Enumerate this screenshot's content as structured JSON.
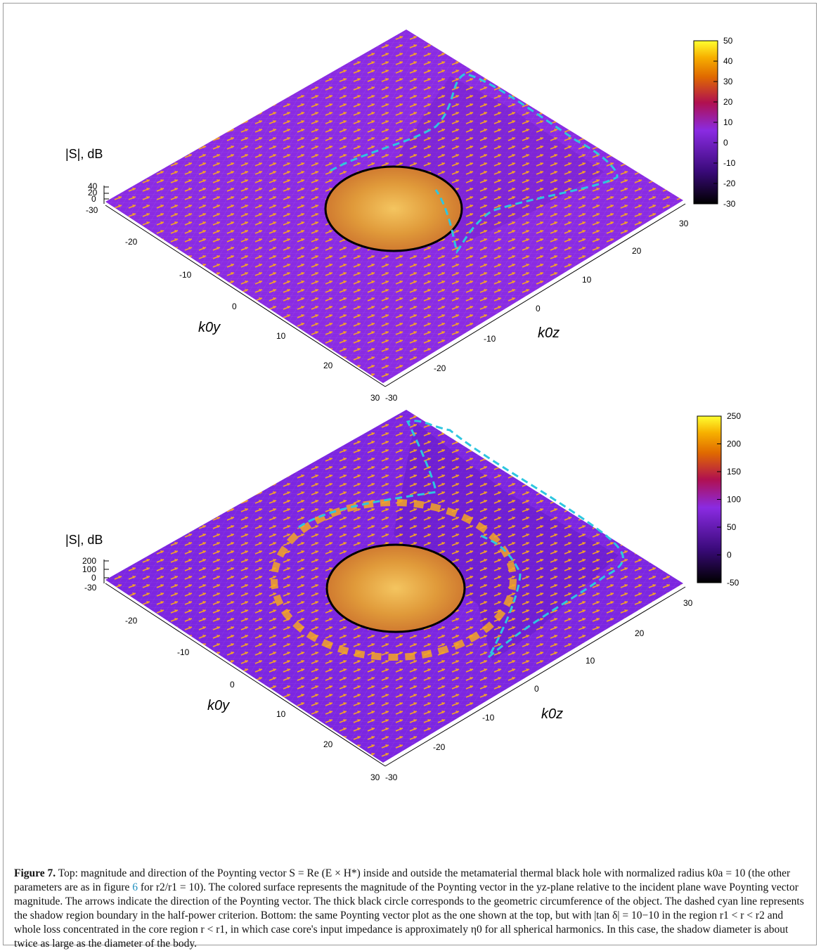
{
  "figure": {
    "panels": [
      {
        "id": "top",
        "zlabel": "|S|, dB",
        "zticks": [
          "40",
          "20",
          "0",
          "-30"
        ],
        "colorbar": {
          "min": -30,
          "max": 50,
          "ticks": [
            "50",
            "40",
            "30",
            "20",
            "10",
            "0",
            "-10",
            "-20",
            "-30"
          ]
        },
        "ylabel": "k0y",
        "zaxis_label": "k0z",
        "y_ticks": [
          "-20",
          "-10",
          "0",
          "10",
          "20",
          "30"
        ],
        "z_ticks": [
          "-30",
          "-20",
          "-10",
          "0",
          "10",
          "20",
          "30"
        ]
      },
      {
        "id": "bottom",
        "zlabel": "|S|, dB",
        "zticks": [
          "200",
          "100",
          "0",
          "-30"
        ],
        "colorbar": {
          "min": -50,
          "max": 250,
          "ticks": [
            "250",
            "200",
            "150",
            "100",
            "50",
            "0",
            "-50"
          ]
        },
        "ylabel": "k0y",
        "zaxis_label": "k0z",
        "y_ticks": [
          "-20",
          "-10",
          "0",
          "10",
          "20",
          "30"
        ],
        "z_ticks": [
          "-30",
          "-20",
          "-10",
          "0",
          "10",
          "20",
          "30"
        ]
      }
    ],
    "colors": {
      "surface": "#8a2be2",
      "arrow": "#f5a623",
      "circle": "#000000",
      "shadow_line": "#2ec6e0"
    }
  },
  "caption": {
    "label": "Figure 7.",
    "text_1": " Top: magnitude and direction of the Poynting vector S = Re (E × H*) inside and outside the metamaterial thermal black hole with normalized radius k0a = 10 (the other parameters are as in figure ",
    "ref": "6",
    "text_2": " for r2/r1 = 10). The colored surface represents the magnitude of the Poynting vector in the yz-plane relative to the incident plane wave Poynting vector magnitude. The arrows indicate the direction of the Poynting vector. The thick black circle corresponds to the geometric circumference of the object. The dashed cyan line represents the shadow region boundary in the half-power criterion. Bottom: the same Poynting vector plot as the one shown at the top, but with |tan δ| = 10−10 in the region r1 < r < r2 and whole loss concentrated in the core region r < r1, in which case core's input impedance is approximately η0 for all spherical harmonics. In this case, the shadow diameter is about twice as large as the diameter of the body."
  }
}
